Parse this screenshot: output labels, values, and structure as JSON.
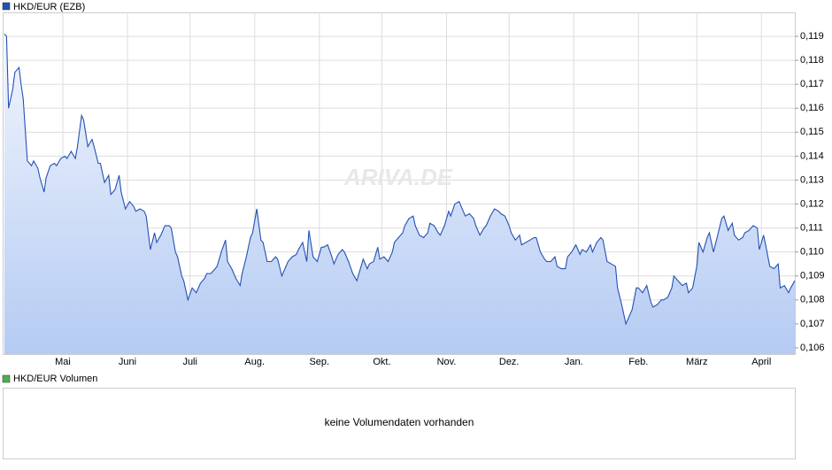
{
  "chart_data": {
    "type": "area",
    "legend": "HKD/EUR (EZB)",
    "watermark": "ARIVA.DE",
    "color": "#2451b3",
    "grid": true,
    "xlim": [
      0,
      379
    ],
    "ylim": [
      0.10574,
      0.12
    ],
    "xticks": [
      {
        "value": 28,
        "label": "Mai"
      },
      {
        "value": 59,
        "label": "Juni"
      },
      {
        "value": 89,
        "label": "Juli"
      },
      {
        "value": 120,
        "label": "Aug."
      },
      {
        "value": 151,
        "label": "Sep."
      },
      {
        "value": 181,
        "label": "Okt."
      },
      {
        "value": 212,
        "label": "Nov."
      },
      {
        "value": 242,
        "label": "Dez."
      },
      {
        "value": 273,
        "label": "Jan."
      },
      {
        "value": 304,
        "label": "Feb."
      },
      {
        "value": 332,
        "label": "März"
      },
      {
        "value": 363,
        "label": "April"
      }
    ],
    "yticks": [
      {
        "value": 0.106,
        "label": "0,106"
      },
      {
        "value": 0.107,
        "label": "0,107"
      },
      {
        "value": 0.108,
        "label": "0,108"
      },
      {
        "value": 0.109,
        "label": "0,109"
      },
      {
        "value": 0.11,
        "label": "0,110"
      },
      {
        "value": 0.111,
        "label": "0,111"
      },
      {
        "value": 0.112,
        "label": "0,112"
      },
      {
        "value": 0.113,
        "label": "0,113"
      },
      {
        "value": 0.114,
        "label": "0,114"
      },
      {
        "value": 0.115,
        "label": "0,115"
      },
      {
        "value": 0.116,
        "label": "0,116"
      },
      {
        "value": 0.117,
        "label": "0,117"
      },
      {
        "value": 0.118,
        "label": "0,118"
      },
      {
        "value": 0.119,
        "label": "0,119"
      }
    ],
    "x": [
      0,
      1,
      2,
      4,
      5,
      7,
      8,
      9,
      11,
      13,
      14,
      16,
      17,
      19,
      20,
      22,
      24,
      25,
      27,
      29,
      30,
      32,
      34,
      35,
      37,
      38,
      40,
      42,
      43,
      45,
      46,
      48,
      50,
      51,
      53,
      55,
      56,
      58,
      60,
      62,
      63,
      65,
      67,
      68,
      70,
      72,
      73,
      75,
      77,
      79,
      80,
      82,
      83,
      85,
      86,
      88,
      90,
      92,
      94,
      96,
      97,
      99,
      101,
      102,
      104,
      106,
      107,
      109,
      111,
      113,
      114,
      116,
      118,
      119,
      121,
      123,
      124,
      126,
      128,
      130,
      131,
      133,
      135,
      136,
      138,
      140,
      141,
      143,
      145,
      146,
      148,
      150,
      152,
      153,
      155,
      157,
      158,
      160,
      162,
      163,
      165,
      167,
      169,
      170,
      172,
      174,
      175,
      177,
      179,
      180,
      182,
      184,
      186,
      187,
      189,
      191,
      192,
      194,
      196,
      197,
      199,
      201,
      203,
      204,
      206,
      208,
      209,
      211,
      213,
      214,
      216,
      218,
      220,
      221,
      223,
      225,
      226,
      228,
      230,
      231,
      233,
      235,
      237,
      238,
      240,
      242,
      243,
      245,
      247,
      248,
      250,
      252,
      254,
      255,
      257,
      259,
      260,
      262,
      264,
      265,
      267,
      269,
      270,
      272,
      274,
      276,
      277,
      279,
      281,
      282,
      284,
      286,
      287,
      289,
      291,
      293,
      294,
      296,
      298,
      299,
      301,
      303,
      304,
      306,
      308,
      310,
      311,
      313,
      315,
      316,
      318,
      320,
      321,
      323,
      325,
      327,
      328,
      330,
      332,
      333,
      335,
      337,
      338,
      340,
      342,
      344,
      345,
      347,
      349,
      350,
      352,
      354,
      355,
      357,
      359,
      361,
      362,
      364,
      365,
      367,
      369,
      371,
      372,
      374,
      376,
      377,
      379
    ],
    "values": [
      0.1191,
      0.119,
      0.116,
      0.1168,
      0.1175,
      0.1177,
      0.117,
      0.1164,
      0.1138,
      0.1136,
      0.1138,
      0.1135,
      0.1131,
      0.1125,
      0.1131,
      0.1136,
      0.1137,
      0.1136,
      0.1139,
      0.114,
      0.1139,
      0.1142,
      0.1139,
      0.1144,
      0.1157,
      0.1155,
      0.1144,
      0.1147,
      0.1144,
      0.1137,
      0.1137,
      0.1129,
      0.1132,
      0.1124,
      0.1126,
      0.1132,
      0.1125,
      0.1118,
      0.1121,
      0.1119,
      0.1117,
      0.1118,
      0.1117,
      0.1115,
      0.1101,
      0.1108,
      0.1104,
      0.1107,
      0.1111,
      0.1111,
      0.111,
      0.11,
      0.1098,
      0.109,
      0.1088,
      0.108,
      0.1085,
      0.1083,
      0.1087,
      0.1089,
      0.1091,
      0.1091,
      0.1093,
      0.1094,
      0.11,
      0.1105,
      0.1096,
      0.1093,
      0.1089,
      0.1086,
      0.1091,
      0.1098,
      0.1106,
      0.1108,
      0.1118,
      0.1105,
      0.1104,
      0.1096,
      0.1096,
      0.1098,
      0.1097,
      0.109,
      0.1094,
      0.1096,
      0.1098,
      0.1099,
      0.1101,
      0.1104,
      0.1096,
      0.1109,
      0.1098,
      0.1096,
      0.1102,
      0.1102,
      0.1103,
      0.1098,
      0.1095,
      0.1099,
      0.1101,
      0.11,
      0.1096,
      0.1091,
      0.1088,
      0.1091,
      0.1097,
      0.1093,
      0.1095,
      0.1096,
      0.1102,
      0.1097,
      0.1098,
      0.1096,
      0.11,
      0.1104,
      0.1106,
      0.1108,
      0.1111,
      0.1114,
      0.1115,
      0.1111,
      0.1107,
      0.1106,
      0.1108,
      0.1112,
      0.1111,
      0.1108,
      0.1107,
      0.1111,
      0.1117,
      0.1115,
      0.112,
      0.1121,
      0.1117,
      0.1115,
      0.1116,
      0.1114,
      0.1111,
      0.1107,
      0.111,
      0.1111,
      0.1115,
      0.1118,
      0.1117,
      0.1116,
      0.1115,
      0.1111,
      0.1108,
      0.1105,
      0.1107,
      0.1103,
      0.1104,
      0.1105,
      0.1106,
      0.1106,
      0.11,
      0.1097,
      0.1096,
      0.1096,
      0.1098,
      0.1094,
      0.1093,
      0.1093,
      0.1098,
      0.11,
      0.1103,
      0.1099,
      0.1101,
      0.11,
      0.1103,
      0.11,
      0.1104,
      0.1106,
      0.1105,
      0.1096,
      0.1095,
      0.1094,
      0.1085,
      0.1078,
      0.107,
      0.1072,
      0.1076,
      0.1085,
      0.1085,
      0.1083,
      0.1086,
      0.1079,
      0.1077,
      0.1078,
      0.108,
      0.108,
      0.1081,
      0.1085,
      0.109,
      0.1088,
      0.1086,
      0.1087,
      0.1083,
      0.1085,
      0.1094,
      0.1104,
      0.11,
      0.1106,
      0.1108,
      0.11,
      0.1107,
      0.1114,
      0.1115,
      0.1109,
      0.1112,
      0.1107,
      0.1105,
      0.1106,
      0.1108,
      0.1109,
      0.1111,
      0.111,
      0.1101,
      0.1107,
      0.1103,
      0.1094,
      0.1093,
      0.1095,
      0.1085,
      0.1086,
      0.1083,
      0.1085,
      0.1088
    ]
  },
  "volume": {
    "legend": "HKD/EUR Volumen",
    "color": "#4caf50",
    "message": "keine Volumendaten vorhanden"
  }
}
